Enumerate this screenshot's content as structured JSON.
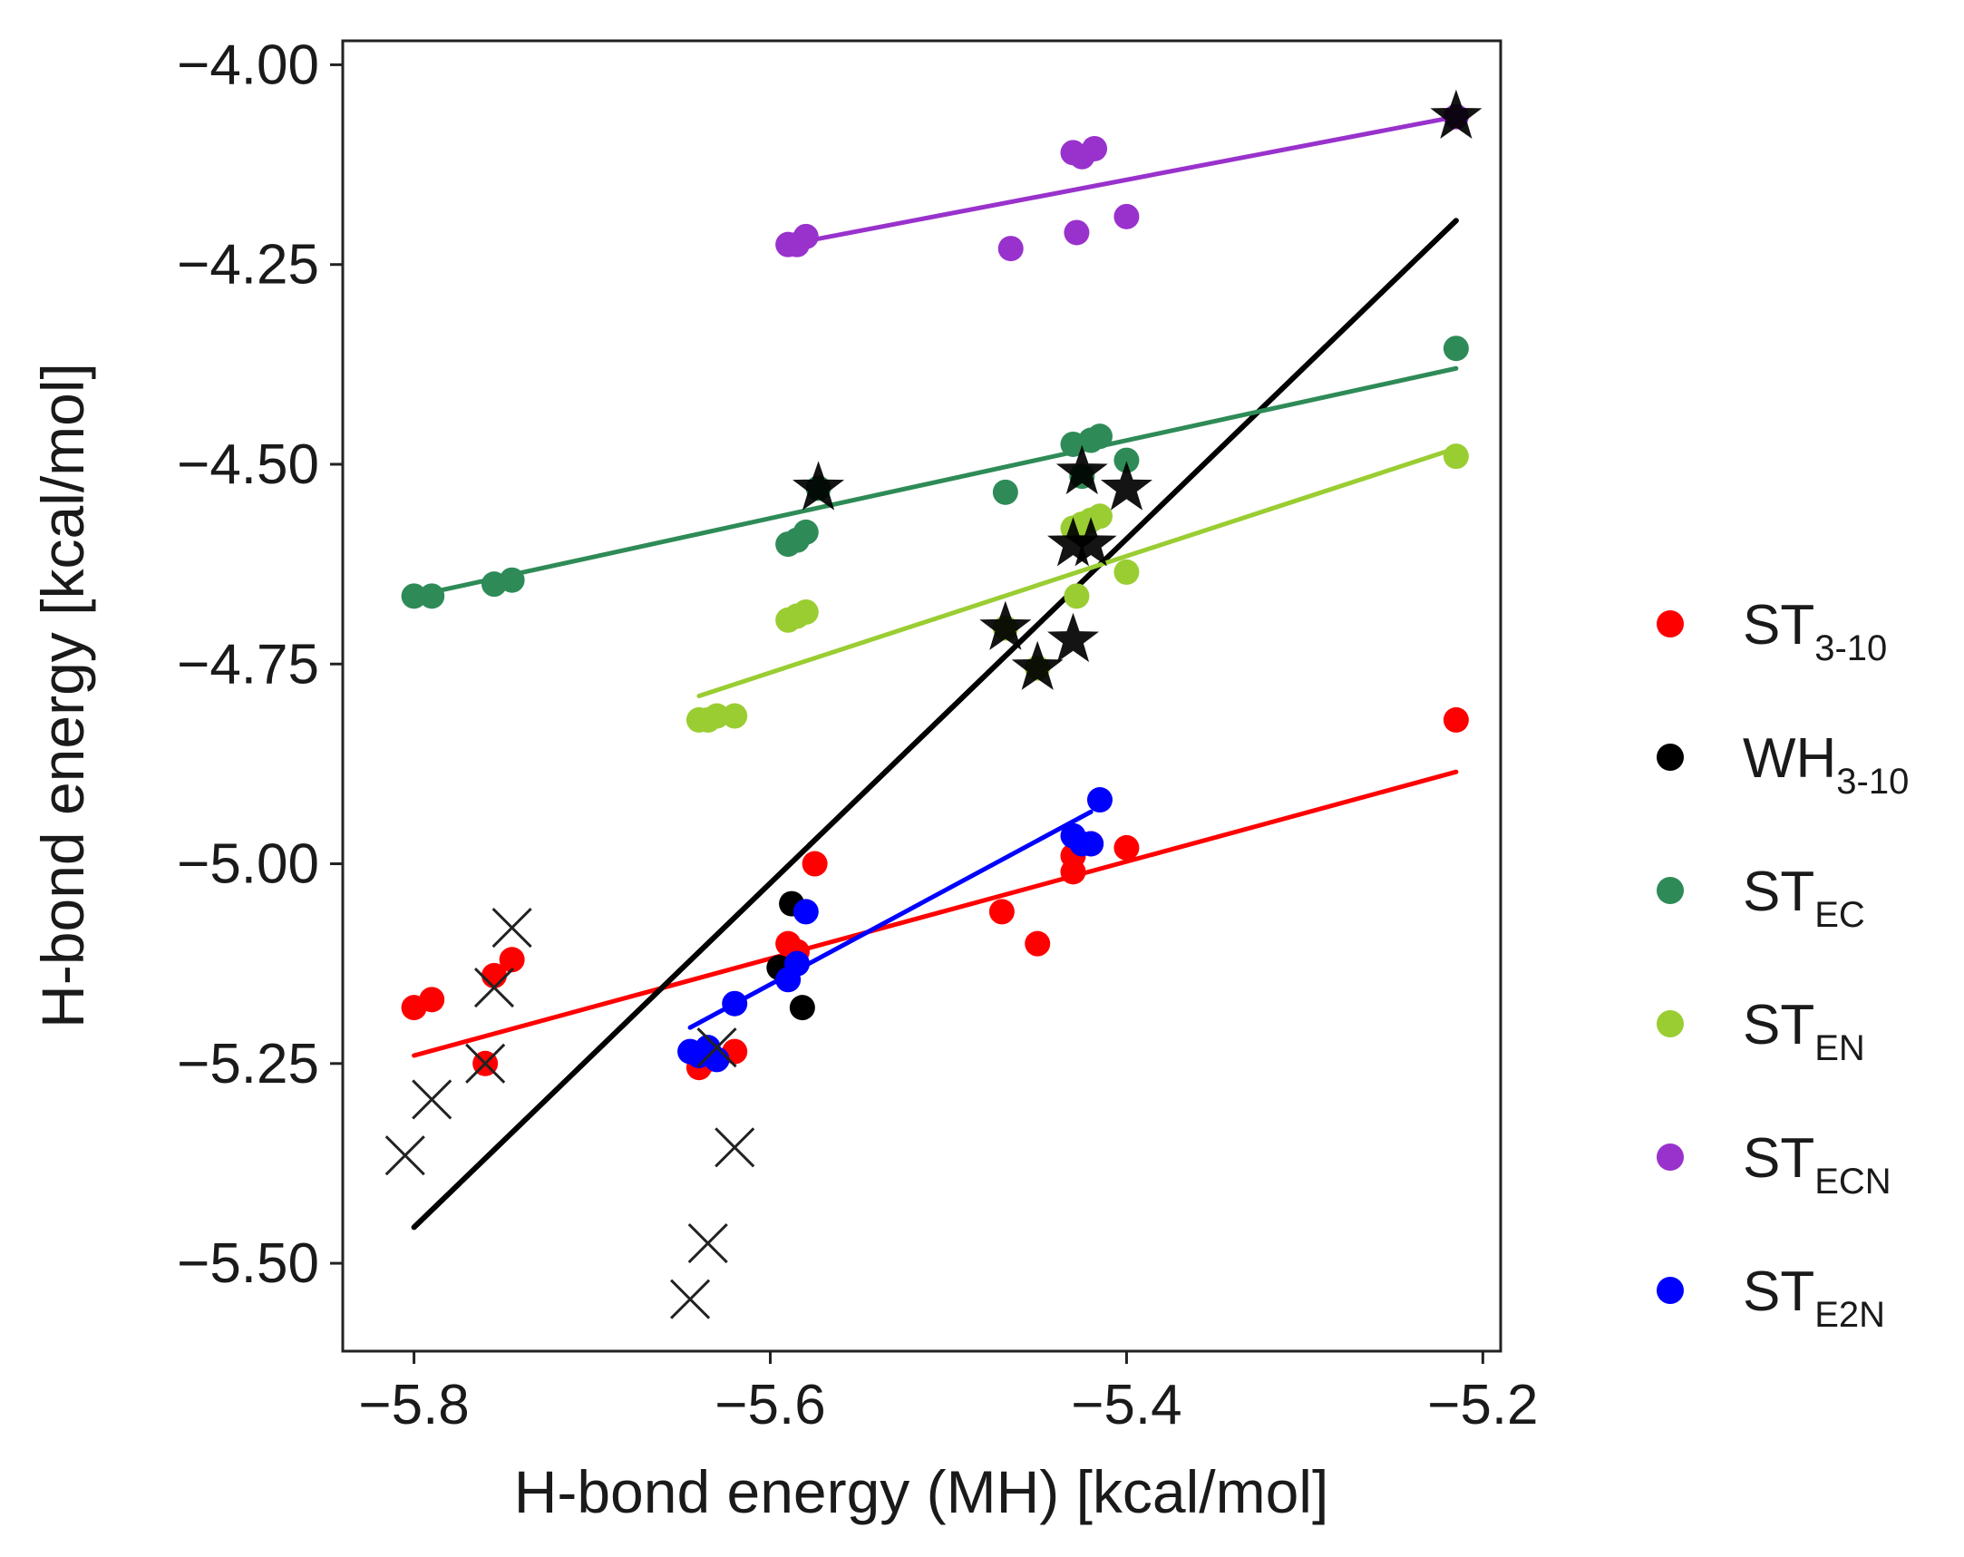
{
  "chart_data": {
    "type": "scatter",
    "title": "",
    "xlabel": "H-bond energy (MH) [kcal/mol]",
    "ylabel": "H-bond energy [kcal/mol]",
    "xlim": [
      -5.84,
      -5.19
    ],
    "ylim": [
      -5.61,
      -3.97
    ],
    "xticks": [
      -5.8,
      -5.6,
      -5.4,
      -5.2
    ],
    "xtick_labels": [
      "−5.8",
      "−5.6",
      "−5.4",
      "−5.2"
    ],
    "yticks": [
      -4.0,
      -4.25,
      -4.5,
      -4.75,
      -5.0,
      -5.25,
      -5.5
    ],
    "ytick_labels": [
      "−4.00",
      "−4.25",
      "−4.50",
      "−4.75",
      "−5.00",
      "−5.25",
      "−5.50"
    ],
    "grid": false,
    "legend_position": "right",
    "series": [
      {
        "name": "ST_3-10",
        "label_main": "ST",
        "label_sub": "3-10",
        "color": "#ff0000",
        "points": [
          [
            -5.8,
            -5.18
          ],
          [
            -5.79,
            -5.17
          ],
          [
            -5.76,
            -5.25
          ],
          [
            -5.755,
            -5.14
          ],
          [
            -5.745,
            -5.12
          ],
          [
            -5.64,
            -5.255
          ],
          [
            -5.635,
            -5.245
          ],
          [
            -5.62,
            -5.235
          ],
          [
            -5.59,
            -5.1
          ],
          [
            -5.585,
            -5.11
          ],
          [
            -5.575,
            -5.0
          ],
          [
            -5.47,
            -5.06
          ],
          [
            -5.45,
            -5.1
          ],
          [
            -5.43,
            -4.99
          ],
          [
            -5.43,
            -5.01
          ],
          [
            -5.42,
            -4.975
          ],
          [
            -5.4,
            -4.98
          ],
          [
            -5.215,
            -4.82
          ]
        ],
        "fit": [
          [
            -5.8,
            -5.24
          ],
          [
            -5.215,
            -4.885
          ]
        ]
      },
      {
        "name": "WH_3-10",
        "label_main": "WH",
        "label_sub": "3-10",
        "color": "#000000",
        "points": [
          [
            -5.595,
            -5.13
          ],
          [
            -5.588,
            -5.05
          ],
          [
            -5.582,
            -5.18
          ]
        ],
        "fit": [
          [
            -5.8,
            -5.455
          ],
          [
            -5.215,
            -4.195
          ]
        ]
      },
      {
        "name": "ST_EC",
        "label_main": "ST",
        "label_sub": "EC",
        "color": "#2e8b57",
        "points": [
          [
            -5.8,
            -4.665
          ],
          [
            -5.79,
            -4.665
          ],
          [
            -5.755,
            -4.65
          ],
          [
            -5.745,
            -4.645
          ],
          [
            -5.59,
            -4.6
          ],
          [
            -5.585,
            -4.595
          ],
          [
            -5.58,
            -4.585
          ],
          [
            -5.573,
            -4.53
          ],
          [
            -5.468,
            -4.535
          ],
          [
            -5.43,
            -4.475
          ],
          [
            -5.425,
            -4.515
          ],
          [
            -5.42,
            -4.47
          ],
          [
            -5.415,
            -4.465
          ],
          [
            -5.4,
            -4.495
          ],
          [
            -5.215,
            -4.355
          ]
        ],
        "fit": [
          [
            -5.8,
            -4.665
          ],
          [
            -5.215,
            -4.38
          ]
        ]
      },
      {
        "name": "ST_EN",
        "label_main": "ST",
        "label_sub": "EN",
        "color": "#9acd32",
        "points": [
          [
            -5.64,
            -4.82
          ],
          [
            -5.635,
            -4.82
          ],
          [
            -5.63,
            -4.815
          ],
          [
            -5.62,
            -4.815
          ],
          [
            -5.59,
            -4.695
          ],
          [
            -5.585,
            -4.69
          ],
          [
            -5.58,
            -4.685
          ],
          [
            -5.468,
            -4.705
          ],
          [
            -5.45,
            -4.755
          ],
          [
            -5.43,
            -4.58
          ],
          [
            -5.428,
            -4.665
          ],
          [
            -5.425,
            -4.575
          ],
          [
            -5.42,
            -4.57
          ],
          [
            -5.415,
            -4.565
          ],
          [
            -5.4,
            -4.635
          ],
          [
            -5.215,
            -4.49
          ]
        ],
        "fit": [
          [
            -5.64,
            -4.79
          ],
          [
            -5.215,
            -4.48
          ]
        ]
      },
      {
        "name": "ST_ECN",
        "label_main": "ST",
        "label_sub": "ECN",
        "color": "#9932cc",
        "points": [
          [
            -5.59,
            -4.225
          ],
          [
            -5.585,
            -4.225
          ],
          [
            -5.58,
            -4.215
          ],
          [
            -5.465,
            -4.23
          ],
          [
            -5.43,
            -4.11
          ],
          [
            -5.428,
            -4.21
          ],
          [
            -5.425,
            -4.115
          ],
          [
            -5.418,
            -4.105
          ],
          [
            -5.4,
            -4.19
          ],
          [
            -5.215,
            -4.065
          ]
        ],
        "fit": [
          [
            -5.59,
            -4.225
          ],
          [
            -5.215,
            -4.065
          ]
        ]
      },
      {
        "name": "ST_E2N",
        "label_main": "ST",
        "label_sub": "E2N",
        "color": "#0000ff",
        "points": [
          [
            -5.645,
            -5.235
          ],
          [
            -5.64,
            -5.24
          ],
          [
            -5.635,
            -5.23
          ],
          [
            -5.63,
            -5.245
          ],
          [
            -5.62,
            -5.175
          ],
          [
            -5.59,
            -5.145
          ],
          [
            -5.585,
            -5.125
          ],
          [
            -5.58,
            -5.06
          ],
          [
            -5.43,
            -4.965
          ],
          [
            -5.425,
            -4.975
          ],
          [
            -5.42,
            -4.975
          ],
          [
            -5.415,
            -4.92
          ]
        ],
        "fit": [
          [
            -5.645,
            -5.205
          ],
          [
            -5.42,
            -4.935
          ]
        ]
      }
    ],
    "stars": [
      [
        -5.573,
        -4.53
      ],
      [
        -5.468,
        -4.705
      ],
      [
        -5.45,
        -4.755
      ],
      [
        -5.43,
        -4.72
      ],
      [
        -5.425,
        -4.51
      ],
      [
        -5.43,
        -4.6
      ],
      [
        -5.42,
        -4.6
      ],
      [
        -5.4,
        -4.53
      ],
      [
        -5.215,
        -4.065
      ]
    ],
    "crosses": [
      [
        -5.805,
        -5.365
      ],
      [
        -5.79,
        -5.295
      ],
      [
        -5.76,
        -5.25
      ],
      [
        -5.755,
        -5.155
      ],
      [
        -5.745,
        -5.08
      ],
      [
        -5.63,
        -5.23
      ],
      [
        -5.645,
        -5.545
      ],
      [
        -5.635,
        -5.475
      ],
      [
        -5.62,
        -5.355
      ]
    ]
  }
}
